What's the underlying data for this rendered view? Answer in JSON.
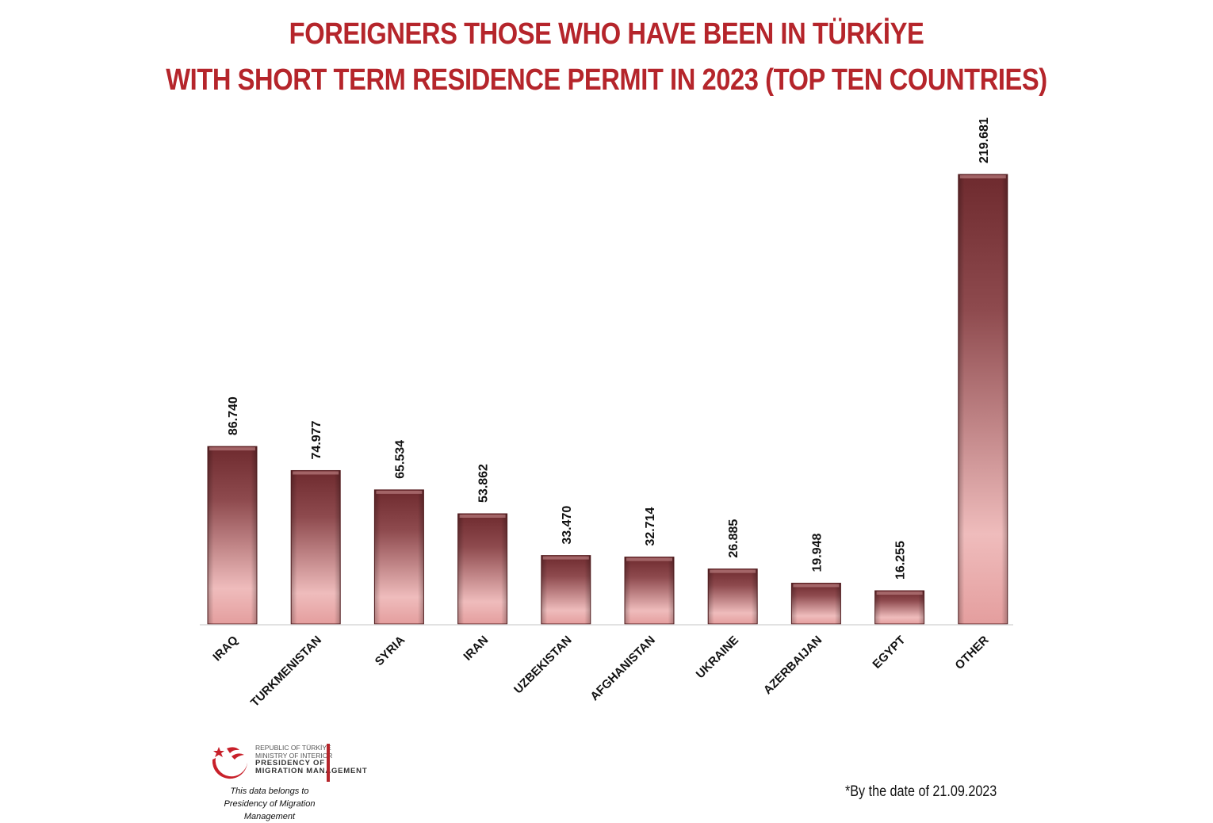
{
  "chart_data": {
    "type": "bar",
    "title": [
      "FOREIGNERS THOSE WHO HAVE BEEN IN TÜRKİYE",
      "WITH SHORT TERM RESIDENCE PERMIT IN 2023 (TOP TEN COUNTRIES)"
    ],
    "categories": [
      "IRAQ",
      "TURKMENISTAN",
      "SYRIA",
      "IRAN",
      "UZBEKISTAN",
      "AFGHANISTAN",
      "UKRAINE",
      "AZERBAIJAN",
      "EGYPT",
      "OTHER"
    ],
    "values": [
      86740,
      74977,
      65534,
      53862,
      33470,
      32714,
      26885,
      19948,
      16255,
      219681
    ],
    "value_labels": [
      "86.740",
      "74.977",
      "65.534",
      "53.862",
      "33.470",
      "32.714",
      "26.885",
      "19.948",
      "16.255",
      "219.681"
    ],
    "grid": false,
    "legend": "none",
    "colors": {
      "bar_top": "#6e2a2e",
      "bar_bottom": "#f2bcbc",
      "title": "#b5252b"
    }
  },
  "logo": {
    "line1": "REPUBLIC OF TÜRKİYE",
    "line2": "MINISTRY OF INTERIOR",
    "line3": "PRESIDENCY OF",
    "line4": "MIGRATION MANAGEMENT"
  },
  "attribution": {
    "line1": "This data belongs to",
    "line2": "Presidency of Migration Management"
  },
  "footnote": "*By the date of 21.09.2023"
}
